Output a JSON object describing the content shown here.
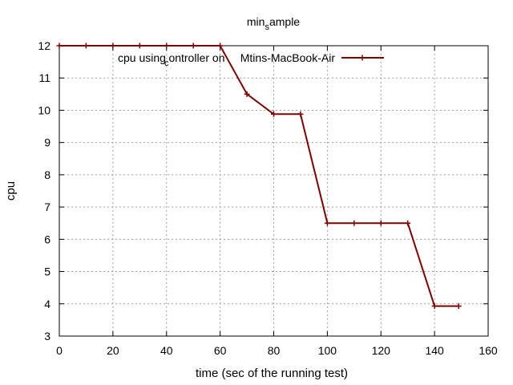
{
  "chart_data": {
    "type": "line",
    "title_main": "min",
    "title_sub": "s",
    "title_rest": "ample",
    "xlabel": "time (sec of the running test)",
    "ylabel": "cpu",
    "xlim": [
      0,
      160
    ],
    "ylim": [
      3,
      12
    ],
    "xticks": [
      0,
      20,
      40,
      60,
      80,
      100,
      120,
      140,
      160
    ],
    "yticks": [
      3,
      4,
      5,
      6,
      7,
      8,
      9,
      10,
      11,
      12
    ],
    "grid": true,
    "legend_position": "top-right",
    "series": [
      {
        "name_main": "cpu using",
        "name_sub": "c",
        "name_rest": "ontroller on",
        "name_host": "Mtins-MacBook-Air",
        "color": "#800000",
        "x": [
          0,
          10,
          20,
          30,
          40,
          50,
          60,
          70,
          80,
          90,
          100,
          110,
          120,
          130,
          140,
          149
        ],
        "y": [
          12,
          12,
          12,
          12,
          12,
          12,
          12,
          10.5,
          9.88,
          9.88,
          6.5,
          6.5,
          6.5,
          6.5,
          3.93,
          3.93
        ]
      }
    ]
  }
}
